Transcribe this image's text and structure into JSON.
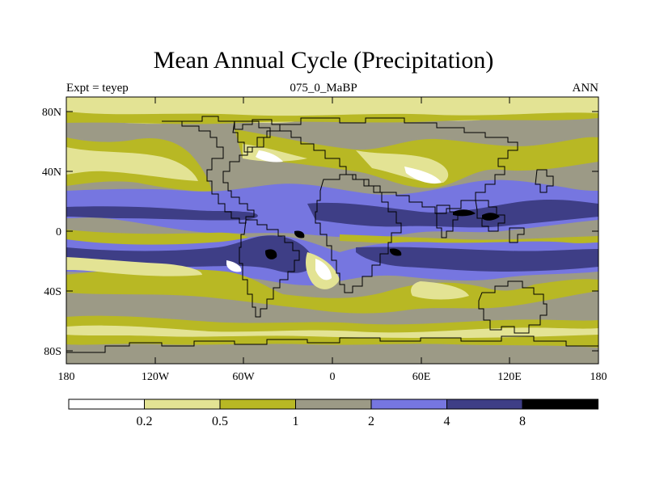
{
  "title": "Mean Annual Cycle (Precipitation)",
  "subtitle_left": "Expt = teyep",
  "subtitle_center": "075_0_MaBP",
  "subtitle_right": "ANN",
  "axes": {
    "lat_labels": [
      "80N",
      "40N",
      "0",
      "40S",
      "80S"
    ],
    "lon_labels": [
      "180",
      "120W",
      "60W",
      "0",
      "60E",
      "120E",
      "180"
    ]
  },
  "colorbar": {
    "labels": [
      "0.2",
      "0.5",
      "1",
      "2",
      "4",
      "8"
    ],
    "colors": [
      "#ffffff",
      "#e3e394",
      "#b8b824",
      "#9c9a86",
      "#7676e0",
      "#3e3e86",
      "#000000"
    ]
  },
  "colors": {
    "background": "#9c9a86",
    "coast": "#000000"
  }
}
